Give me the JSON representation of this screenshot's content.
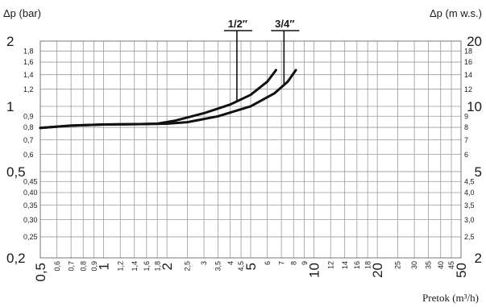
{
  "chart_data": {
    "type": "line",
    "xlabel": "Pretok (m³/h)",
    "ylabel_left": "Δp (bar)",
    "ylabel_right": "Δp (m w.s.)",
    "x_scale": "log",
    "y_scale": "log",
    "xlim": [
      0.5,
      50
    ],
    "ylim": [
      0.2,
      2
    ],
    "grid": true,
    "legend": "labels above curves",
    "x_ticks_major": [
      {
        "v": 0.5,
        "t": "0,5"
      },
      {
        "v": 1,
        "t": "1"
      },
      {
        "v": 2,
        "t": "2"
      },
      {
        "v": 5,
        "t": "5"
      },
      {
        "v": 10,
        "t": "10"
      },
      {
        "v": 20,
        "t": "20"
      },
      {
        "v": 50,
        "t": "50"
      }
    ],
    "x_ticks_minor": [
      {
        "v": 0.6,
        "t": "0,6"
      },
      {
        "v": 0.7,
        "t": "0,7"
      },
      {
        "v": 0.8,
        "t": "0,8"
      },
      {
        "v": 0.9,
        "t": "0,9"
      },
      {
        "v": 1.2,
        "t": "1,2"
      },
      {
        "v": 1.4,
        "t": "1,4"
      },
      {
        "v": 1.6,
        "t": "1,6"
      },
      {
        "v": 1.8,
        "t": "1,8"
      },
      {
        "v": 2.5,
        "t": "2,5"
      },
      {
        "v": 3,
        "t": "3"
      },
      {
        "v": 3.5,
        "t": "3,5"
      },
      {
        "v": 4,
        "t": "4"
      },
      {
        "v": 4.5,
        "t": "4,5"
      },
      {
        "v": 6,
        "t": "6"
      },
      {
        "v": 7,
        "t": "7"
      },
      {
        "v": 8,
        "t": "8"
      },
      {
        "v": 9,
        "t": "9"
      },
      {
        "v": 12,
        "t": "12"
      },
      {
        "v": 14,
        "t": "14"
      },
      {
        "v": 16,
        "t": "16"
      },
      {
        "v": 18,
        "t": "18"
      },
      {
        "v": 25,
        "t": "25"
      },
      {
        "v": 30,
        "t": "30"
      },
      {
        "v": 35,
        "t": "35"
      },
      {
        "v": 40,
        "t": "40"
      },
      {
        "v": 45,
        "t": "45"
      }
    ],
    "y_left_major": [
      {
        "v": 0.2,
        "t": "0,2"
      },
      {
        "v": 0.5,
        "t": "0,5"
      },
      {
        "v": 1,
        "t": "1"
      },
      {
        "v": 2,
        "t": "2"
      }
    ],
    "y_left_minor": [
      {
        "v": 0.25,
        "t": "0,25"
      },
      {
        "v": 0.3,
        "t": "0,30"
      },
      {
        "v": 0.35,
        "t": "0,35"
      },
      {
        "v": 0.4,
        "t": "0,40"
      },
      {
        "v": 0.45,
        "t": "0,45"
      },
      {
        "v": 0.6,
        "t": "0,6"
      },
      {
        "v": 0.7,
        "t": "0,7"
      },
      {
        "v": 0.8,
        "t": "0,8"
      },
      {
        "v": 0.9,
        "t": "0,9"
      },
      {
        "v": 1.2,
        "t": "1,2"
      },
      {
        "v": 1.4,
        "t": "1,4"
      },
      {
        "v": 1.6,
        "t": "1,6"
      },
      {
        "v": 1.8,
        "t": "1,8"
      }
    ],
    "y_right_major": [
      {
        "v": 0.2,
        "t": "2"
      },
      {
        "v": 0.5,
        "t": "5"
      },
      {
        "v": 1,
        "t": "10"
      },
      {
        "v": 2,
        "t": "20"
      }
    ],
    "y_right_minor": [
      {
        "v": 0.25,
        "t": "2,5"
      },
      {
        "v": 0.3,
        "t": "3,0"
      },
      {
        "v": 0.35,
        "t": "3,5"
      },
      {
        "v": 0.4,
        "t": "4,0"
      },
      {
        "v": 0.45,
        "t": "4,5"
      },
      {
        "v": 0.6,
        "t": "6"
      },
      {
        "v": 0.7,
        "t": "7"
      },
      {
        "v": 0.8,
        "t": "8"
      },
      {
        "v": 0.9,
        "t": "9"
      },
      {
        "v": 1.2,
        "t": "12"
      },
      {
        "v": 1.4,
        "t": "14"
      },
      {
        "v": 1.6,
        "t": "16"
      },
      {
        "v": 1.8,
        "t": "18"
      }
    ],
    "series": [
      {
        "name": "1/2″",
        "label_anchor_x": 4.3,
        "x": [
          0.5,
          0.7,
          1.0,
          1.5,
          1.8,
          2.2,
          3.0,
          4.0,
          5.0,
          6.0,
          6.6
        ],
        "y": [
          0.795,
          0.815,
          0.825,
          0.828,
          0.832,
          0.86,
          0.93,
          1.02,
          1.13,
          1.3,
          1.47
        ]
      },
      {
        "name": "3/4″",
        "label_anchor_x": 7.2,
        "x": [
          0.5,
          0.7,
          1.0,
          1.5,
          2.0,
          2.5,
          3.5,
          5.0,
          6.5,
          7.5,
          8.2
        ],
        "y": [
          0.795,
          0.815,
          0.825,
          0.828,
          0.832,
          0.845,
          0.9,
          1.0,
          1.15,
          1.3,
          1.47
        ]
      }
    ]
  }
}
